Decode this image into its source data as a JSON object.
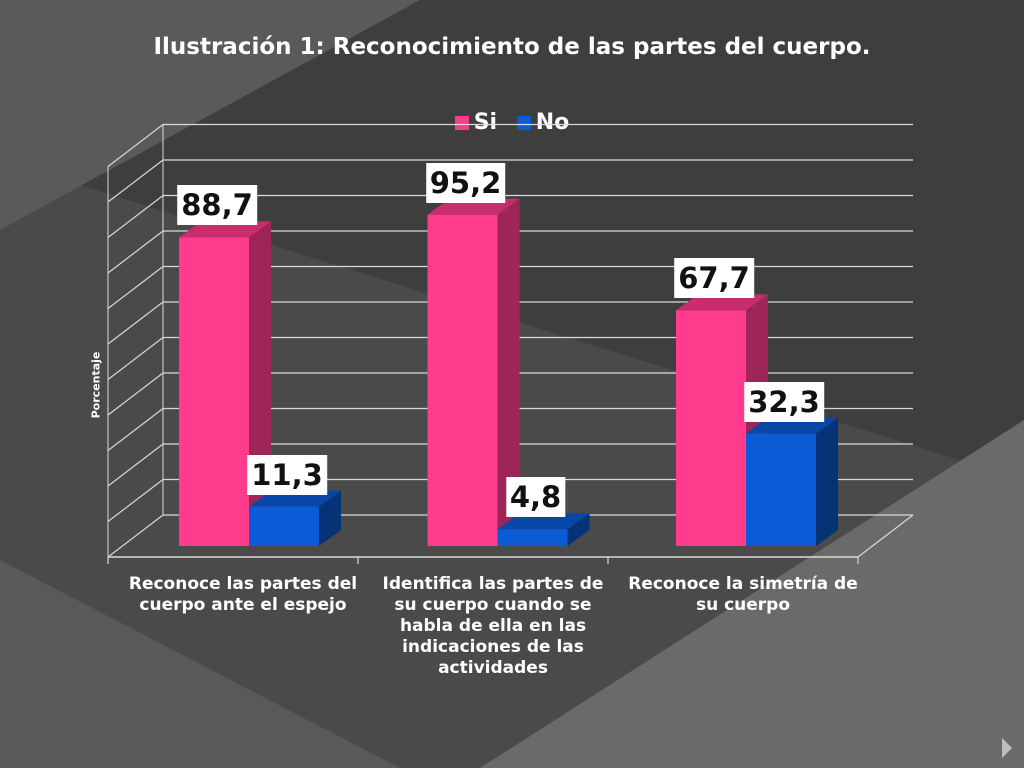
{
  "slide": {
    "colors": {
      "background": "#4b4b4b",
      "grid": "#d9d9d9",
      "text": "#ffffff"
    }
  },
  "chart_data": {
    "type": "bar",
    "title": "Ilustración 1: Reconocimiento de las partes del cuerpo.",
    "ylabel": "Porcentaje",
    "xlabel": "",
    "ylim": [
      0,
      110
    ],
    "grid": true,
    "legend_position": "top",
    "categories": [
      "Reconoce las partes del cuerpo ante el espejo",
      "Identifica las partes de su cuerpo cuando se habla de ella en las indicaciones de las actividades",
      "Reconoce la  simetría de su cuerpo"
    ],
    "series": [
      {
        "name": "Si",
        "color": "#ff3b8d",
        "values": [
          88.7,
          95.2,
          67.7
        ],
        "labels": [
          "88,7",
          "95,2",
          "67,7"
        ]
      },
      {
        "name": "No",
        "color": "#0b5bd6",
        "values": [
          11.3,
          4.8,
          32.3
        ],
        "labels": [
          "11,3",
          "4,8",
          "32,3"
        ]
      }
    ]
  }
}
